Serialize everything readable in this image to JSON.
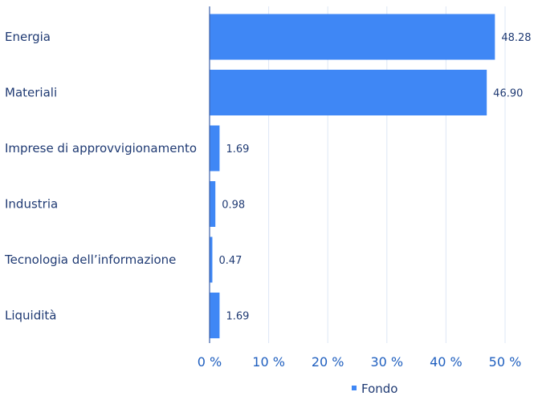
{
  "chart_data": {
    "type": "bar",
    "orientation": "horizontal",
    "categories": [
      "Energia",
      "Materiali",
      "Imprese di approvvigionamento",
      "Industria",
      "Tecnologia dell’informazione",
      "Liquidità"
    ],
    "series": [
      {
        "name": "Fondo",
        "values": [
          48.28,
          46.9,
          1.69,
          0.98,
          0.47,
          1.69
        ],
        "value_labels": [
          "48.28",
          "46.90",
          "1.69",
          "0.98",
          "0.47",
          "1.69"
        ]
      }
    ],
    "x_ticks": [
      "0 %",
      "10 %",
      "20 %",
      "30 %",
      "40 %",
      "50 %"
    ],
    "xlim": [
      0,
      50
    ],
    "grid": true,
    "legend": "bottom-center",
    "colors": {
      "bar": "#3f87f5",
      "grid": "#dde7f5",
      "axis": "#1f5fbf"
    }
  }
}
